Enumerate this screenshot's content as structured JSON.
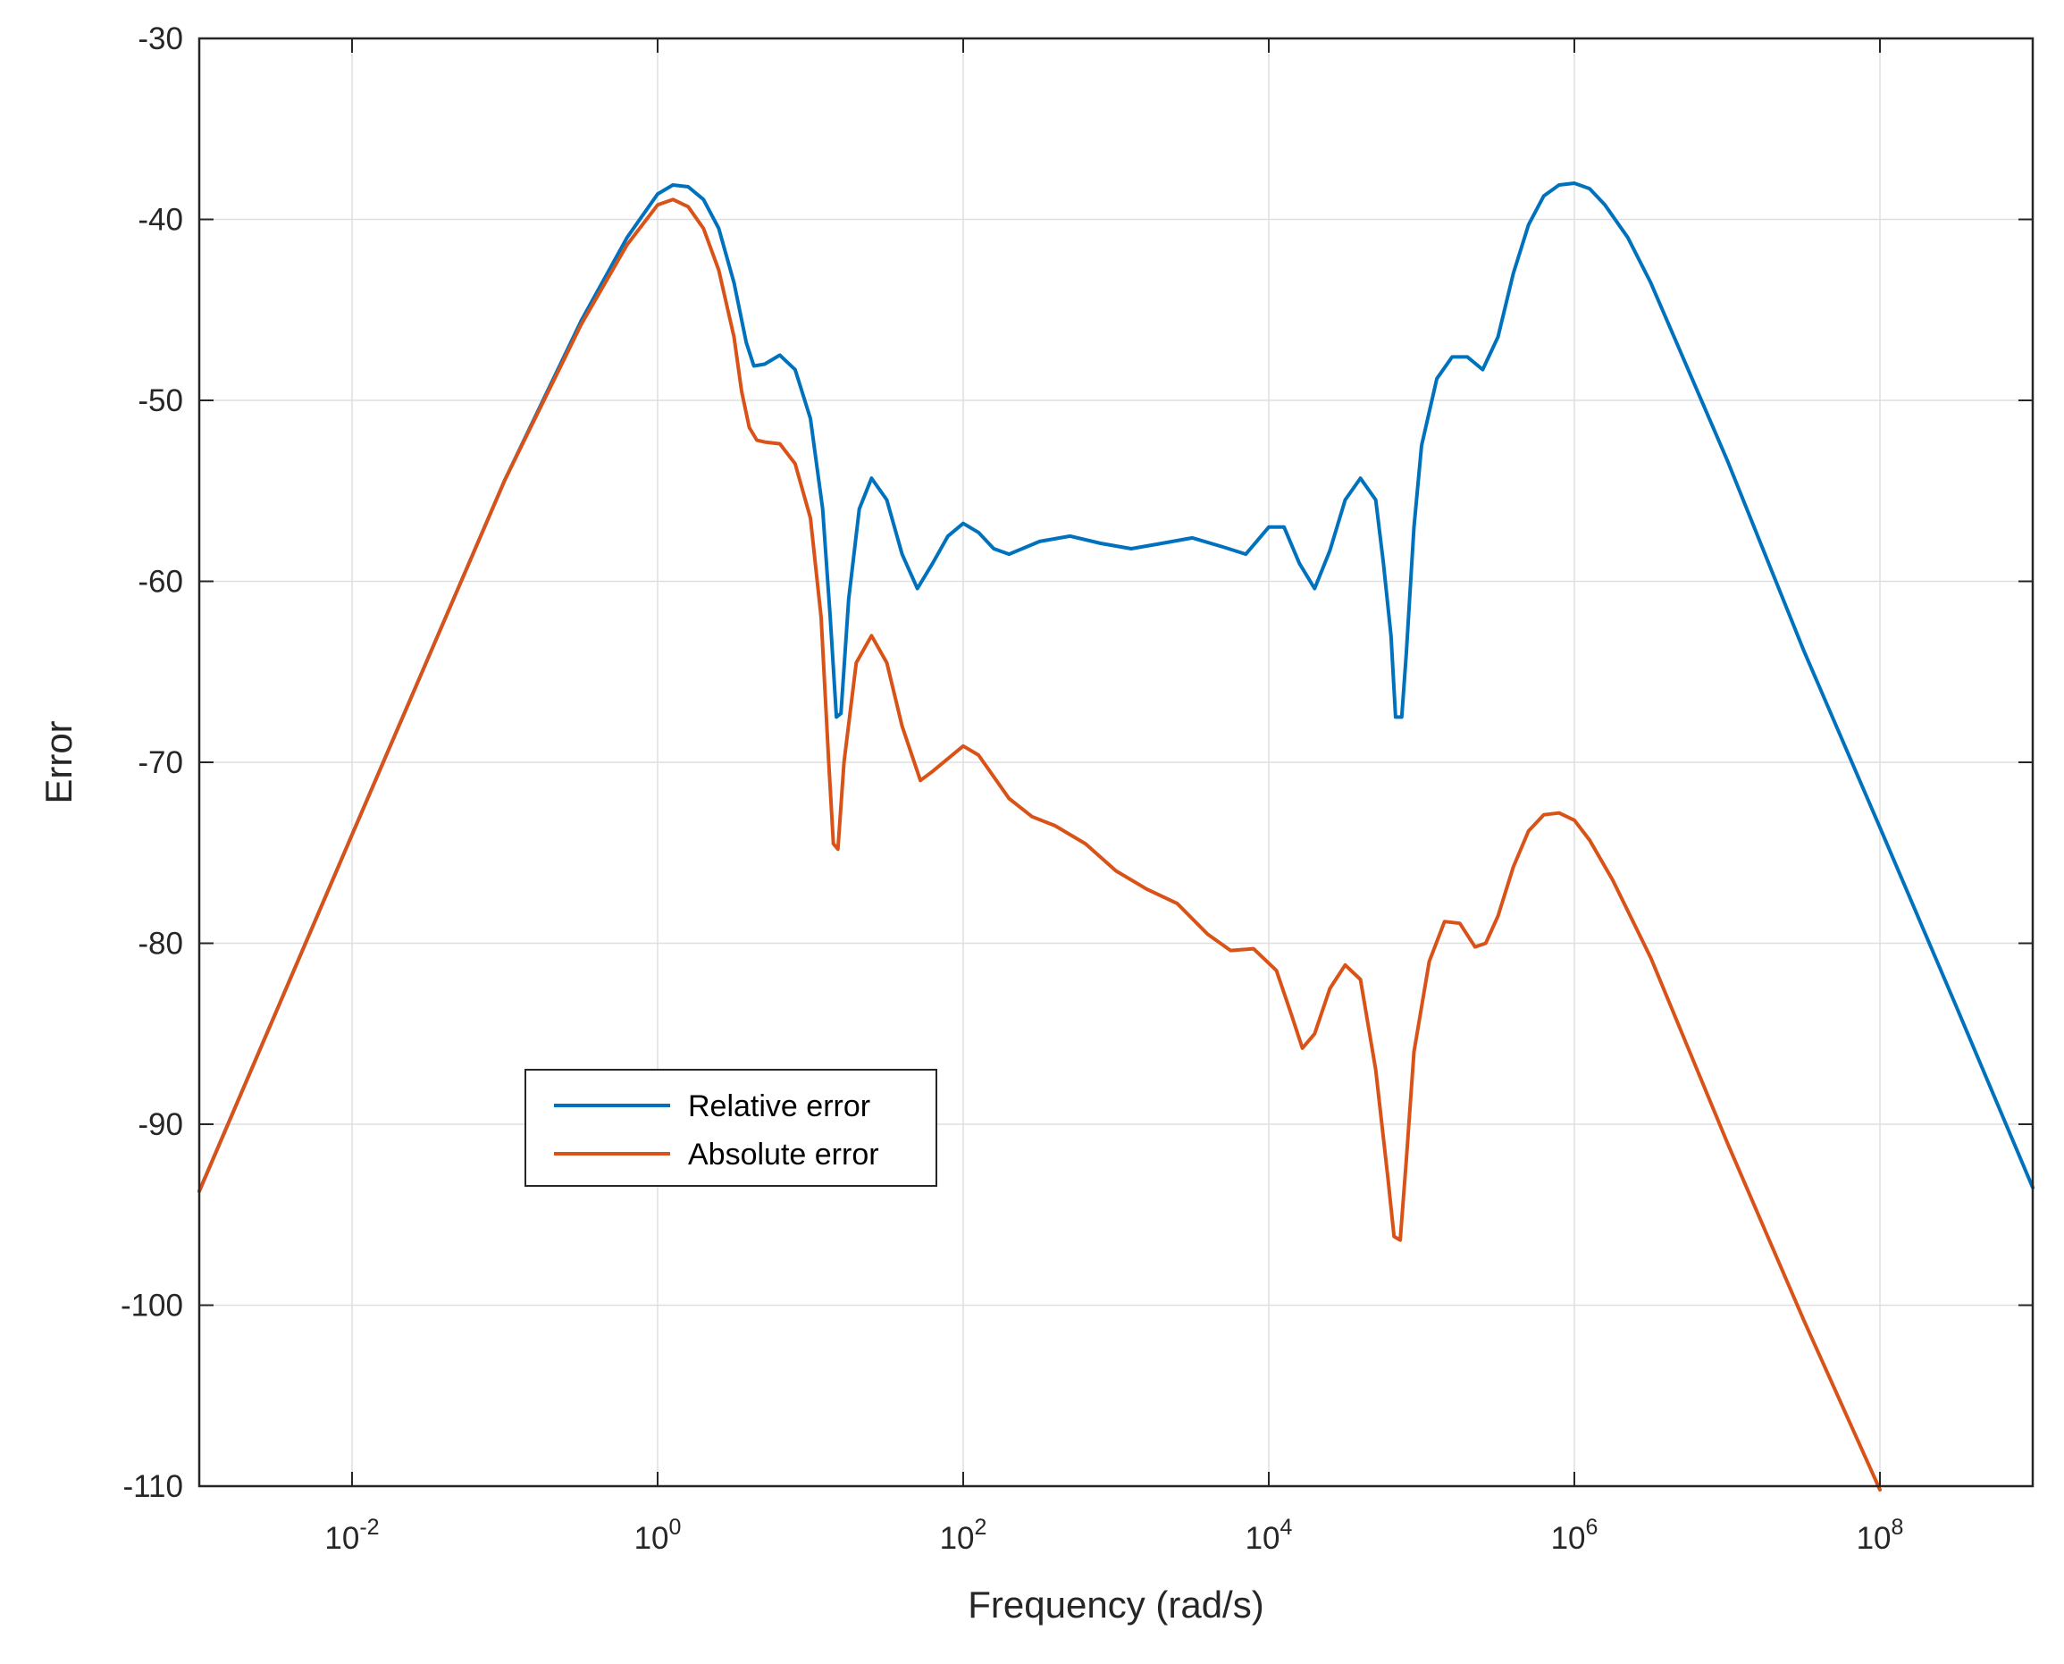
{
  "chart_data": {
    "type": "line",
    "title": "",
    "xlabel": "Frequency (rad/s)",
    "ylabel": "Error",
    "xscale": "log",
    "xlim_log10": [
      -3,
      9
    ],
    "ylim": [
      -110,
      -30
    ],
    "xticks": [
      {
        "exp": -2,
        "base": "10",
        "sup": "-2"
      },
      {
        "exp": 0,
        "base": "10",
        "sup": "0"
      },
      {
        "exp": 2,
        "base": "10",
        "sup": "2"
      },
      {
        "exp": 4,
        "base": "10",
        "sup": "4"
      },
      {
        "exp": 6,
        "base": "10",
        "sup": "6"
      },
      {
        "exp": 8,
        "base": "10",
        "sup": "8"
      }
    ],
    "yticks": [
      {
        "value": -30,
        "label": "-30"
      },
      {
        "value": -40,
        "label": "-40"
      },
      {
        "value": -50,
        "label": "-50"
      },
      {
        "value": -60,
        "label": "-60"
      },
      {
        "value": -70,
        "label": "-70"
      },
      {
        "value": -80,
        "label": "-80"
      },
      {
        "value": -90,
        "label": "-90"
      },
      {
        "value": -100,
        "label": "-100"
      },
      {
        "value": -110,
        "label": "-110"
      }
    ],
    "grid": true,
    "legend_position": "lower-left",
    "series": [
      {
        "name": "Relative error",
        "color": "#0072BD",
        "points_log10x": [
          [
            -3,
            -93.7
          ],
          [
            -2,
            -74.0
          ],
          [
            -1.5,
            -64.2
          ],
          [
            -1,
            -54.4
          ],
          [
            -0.5,
            -45.6
          ],
          [
            -0.2,
            -41.0
          ],
          [
            0,
            -38.6
          ],
          [
            0.1,
            -38.1
          ],
          [
            0.2,
            -38.2
          ],
          [
            0.3,
            -38.9
          ],
          [
            0.4,
            -40.5
          ],
          [
            0.5,
            -43.5
          ],
          [
            0.58,
            -46.8
          ],
          [
            0.63,
            -48.1
          ],
          [
            0.7,
            -48.0
          ],
          [
            0.8,
            -47.5
          ],
          [
            0.9,
            -48.3
          ],
          [
            1.0,
            -51.0
          ],
          [
            1.08,
            -56.0
          ],
          [
            1.13,
            -62.0
          ],
          [
            1.17,
            -67.5
          ],
          [
            1.2,
            -67.3
          ],
          [
            1.25,
            -61.0
          ],
          [
            1.32,
            -56.0
          ],
          [
            1.4,
            -54.3
          ],
          [
            1.5,
            -55.5
          ],
          [
            1.6,
            -58.5
          ],
          [
            1.7,
            -60.4
          ],
          [
            1.8,
            -59.0
          ],
          [
            1.9,
            -57.5
          ],
          [
            2.0,
            -56.8
          ],
          [
            2.1,
            -57.3
          ],
          [
            2.2,
            -58.2
          ],
          [
            2.3,
            -58.5
          ],
          [
            2.5,
            -57.8
          ],
          [
            2.7,
            -57.5
          ],
          [
            2.9,
            -57.9
          ],
          [
            3.1,
            -58.2
          ],
          [
            3.3,
            -57.9
          ],
          [
            3.5,
            -57.6
          ],
          [
            3.7,
            -58.1
          ],
          [
            3.85,
            -58.5
          ],
          [
            4.0,
            -57.0
          ],
          [
            4.1,
            -57.0
          ],
          [
            4.2,
            -59.0
          ],
          [
            4.3,
            -60.4
          ],
          [
            4.4,
            -58.3
          ],
          [
            4.5,
            -55.5
          ],
          [
            4.6,
            -54.3
          ],
          [
            4.7,
            -55.5
          ],
          [
            4.75,
            -59.0
          ],
          [
            4.8,
            -63.0
          ],
          [
            4.83,
            -67.5
          ],
          [
            4.87,
            -67.5
          ],
          [
            4.9,
            -64.0
          ],
          [
            4.95,
            -57.0
          ],
          [
            5.0,
            -52.5
          ],
          [
            5.1,
            -48.8
          ],
          [
            5.2,
            -47.6
          ],
          [
            5.3,
            -47.6
          ],
          [
            5.4,
            -48.3
          ],
          [
            5.5,
            -46.5
          ],
          [
            5.6,
            -43.0
          ],
          [
            5.7,
            -40.3
          ],
          [
            5.8,
            -38.7
          ],
          [
            5.9,
            -38.1
          ],
          [
            6.0,
            -38.0
          ],
          [
            6.1,
            -38.3
          ],
          [
            6.2,
            -39.2
          ],
          [
            6.35,
            -41.0
          ],
          [
            6.5,
            -43.5
          ],
          [
            7.0,
            -53.3
          ],
          [
            7.5,
            -63.8
          ],
          [
            8.0,
            -73.6
          ],
          [
            8.5,
            -83.5
          ],
          [
            9.0,
            -93.5
          ]
        ]
      },
      {
        "name": "Absolute error",
        "color": "#D95319",
        "points_log10x": [
          [
            -3,
            -93.7
          ],
          [
            -2,
            -74.0
          ],
          [
            -1.5,
            -64.2
          ],
          [
            -1,
            -54.4
          ],
          [
            -0.5,
            -45.8
          ],
          [
            -0.2,
            -41.4
          ],
          [
            0,
            -39.2
          ],
          [
            0.1,
            -38.9
          ],
          [
            0.2,
            -39.3
          ],
          [
            0.3,
            -40.5
          ],
          [
            0.4,
            -42.8
          ],
          [
            0.5,
            -46.5
          ],
          [
            0.55,
            -49.5
          ],
          [
            0.6,
            -51.5
          ],
          [
            0.65,
            -52.2
          ],
          [
            0.7,
            -52.3
          ],
          [
            0.8,
            -52.4
          ],
          [
            0.9,
            -53.5
          ],
          [
            1.0,
            -56.5
          ],
          [
            1.07,
            -62.0
          ],
          [
            1.12,
            -70.0
          ],
          [
            1.15,
            -74.5
          ],
          [
            1.18,
            -74.8
          ],
          [
            1.22,
            -70.0
          ],
          [
            1.3,
            -64.5
          ],
          [
            1.4,
            -63.0
          ],
          [
            1.5,
            -64.5
          ],
          [
            1.6,
            -68.0
          ],
          [
            1.72,
            -71.0
          ],
          [
            1.8,
            -70.5
          ],
          [
            2.0,
            -69.1
          ],
          [
            2.1,
            -69.6
          ],
          [
            2.3,
            -72.0
          ],
          [
            2.45,
            -73.0
          ],
          [
            2.6,
            -73.5
          ],
          [
            2.8,
            -74.5
          ],
          [
            3.0,
            -76.0
          ],
          [
            3.2,
            -77.0
          ],
          [
            3.4,
            -77.8
          ],
          [
            3.6,
            -79.5
          ],
          [
            3.75,
            -80.4
          ],
          [
            3.9,
            -80.3
          ],
          [
            4.05,
            -81.5
          ],
          [
            4.15,
            -84.0
          ],
          [
            4.22,
            -85.8
          ],
          [
            4.3,
            -85.0
          ],
          [
            4.4,
            -82.5
          ],
          [
            4.5,
            -81.2
          ],
          [
            4.6,
            -82.0
          ],
          [
            4.7,
            -87.0
          ],
          [
            4.78,
            -93.0
          ],
          [
            4.82,
            -96.2
          ],
          [
            4.86,
            -96.4
          ],
          [
            4.9,
            -92.0
          ],
          [
            4.95,
            -86.0
          ],
          [
            5.05,
            -81.0
          ],
          [
            5.15,
            -78.8
          ],
          [
            5.25,
            -78.9
          ],
          [
            5.35,
            -80.2
          ],
          [
            5.42,
            -80.0
          ],
          [
            5.5,
            -78.5
          ],
          [
            5.6,
            -75.8
          ],
          [
            5.7,
            -73.8
          ],
          [
            5.8,
            -72.9
          ],
          [
            5.9,
            -72.8
          ],
          [
            6.0,
            -73.2
          ],
          [
            6.1,
            -74.3
          ],
          [
            6.25,
            -76.5
          ],
          [
            6.5,
            -80.8
          ],
          [
            7.0,
            -91.0
          ],
          [
            7.5,
            -100.8
          ],
          [
            8.0,
            -110.2
          ]
        ]
      }
    ]
  }
}
